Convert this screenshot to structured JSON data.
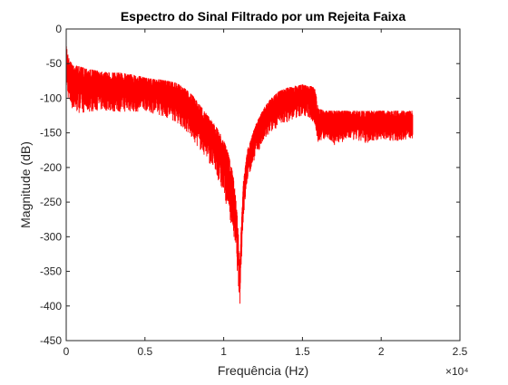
{
  "colors": {
    "series": "#ff0000",
    "axis": "#262626",
    "background": "#ffffff"
  },
  "chart_data": {
    "type": "line",
    "title": "Espectro do Sinal Filtrado por um Rejeita Faixa",
    "xlabel": "Frequência (Hz)",
    "ylabel": "Magnitude (dB)",
    "x_multiplier_label": "×10⁴",
    "x_multiplier": 10000,
    "xlim": [
      0,
      25000
    ],
    "ylim": [
      -450,
      0
    ],
    "xticks": [
      0,
      5000,
      10000,
      15000,
      20000,
      25000
    ],
    "xtick_labels": [
      "0",
      "0.5",
      "1",
      "1.5",
      "2",
      "2.5"
    ],
    "yticks": [
      0,
      -50,
      -100,
      -150,
      -200,
      -250,
      -300,
      -350,
      -400,
      -450
    ],
    "ytick_labels": [
      "0",
      "-50",
      "-100",
      "-150",
      "-200",
      "-250",
      "-300",
      "-350",
      "-400",
      "-450"
    ],
    "grid": false,
    "series": [
      {
        "color": "#ff0000",
        "upper_envelope": {
          "x": [
            0,
            200,
            500,
            1000,
            1500,
            2000,
            2500,
            3000,
            3500,
            4000,
            4500,
            5000,
            5500,
            6000,
            6500,
            7000,
            7500,
            8000,
            8500,
            9000,
            9500,
            10000,
            10300,
            10600,
            10800,
            10950,
            11020,
            11100,
            11250,
            11500,
            12000,
            12500,
            13000,
            13500,
            14000,
            14500,
            15000,
            15500,
            15800,
            16000,
            16500,
            17000,
            18000,
            19000,
            20000,
            21000,
            22000
          ],
          "y": [
            -22,
            -45,
            -52,
            -55,
            -58,
            -60,
            -62,
            -63,
            -63,
            -65,
            -67,
            -70,
            -72,
            -73,
            -75,
            -78,
            -85,
            -95,
            -110,
            -125,
            -140,
            -160,
            -180,
            -210,
            -250,
            -300,
            -340,
            -290,
            -220,
            -175,
            -140,
            -115,
            -100,
            -90,
            -85,
            -82,
            -80,
            -82,
            -85,
            -115,
            -118,
            -118,
            -118,
            -118,
            -118,
            -118,
            -118
          ]
        },
        "lower_envelope": {
          "x": [
            0,
            200,
            500,
            1000,
            1500,
            2000,
            2500,
            3000,
            3500,
            4000,
            4500,
            5000,
            5500,
            6000,
            6500,
            7000,
            7500,
            8000,
            8500,
            9000,
            9500,
            10000,
            10300,
            10600,
            10800,
            10950,
            11020,
            11100,
            11250,
            11500,
            12000,
            12500,
            13000,
            13500,
            14000,
            14500,
            15000,
            15500,
            15800,
            16000,
            16500,
            17000,
            18000,
            19000,
            20000,
            21000,
            22000
          ],
          "y": [
            -85,
            -110,
            -120,
            -122,
            -120,
            -118,
            -118,
            -120,
            -120,
            -120,
            -120,
            -118,
            -122,
            -125,
            -130,
            -135,
            -145,
            -160,
            -175,
            -190,
            -210,
            -240,
            -265,
            -295,
            -330,
            -380,
            -405,
            -350,
            -275,
            -220,
            -185,
            -165,
            -150,
            -140,
            -135,
            -130,
            -125,
            -130,
            -140,
            -165,
            -158,
            -168,
            -160,
            -165,
            -160,
            -162,
            -158
          ]
        }
      }
    ]
  }
}
